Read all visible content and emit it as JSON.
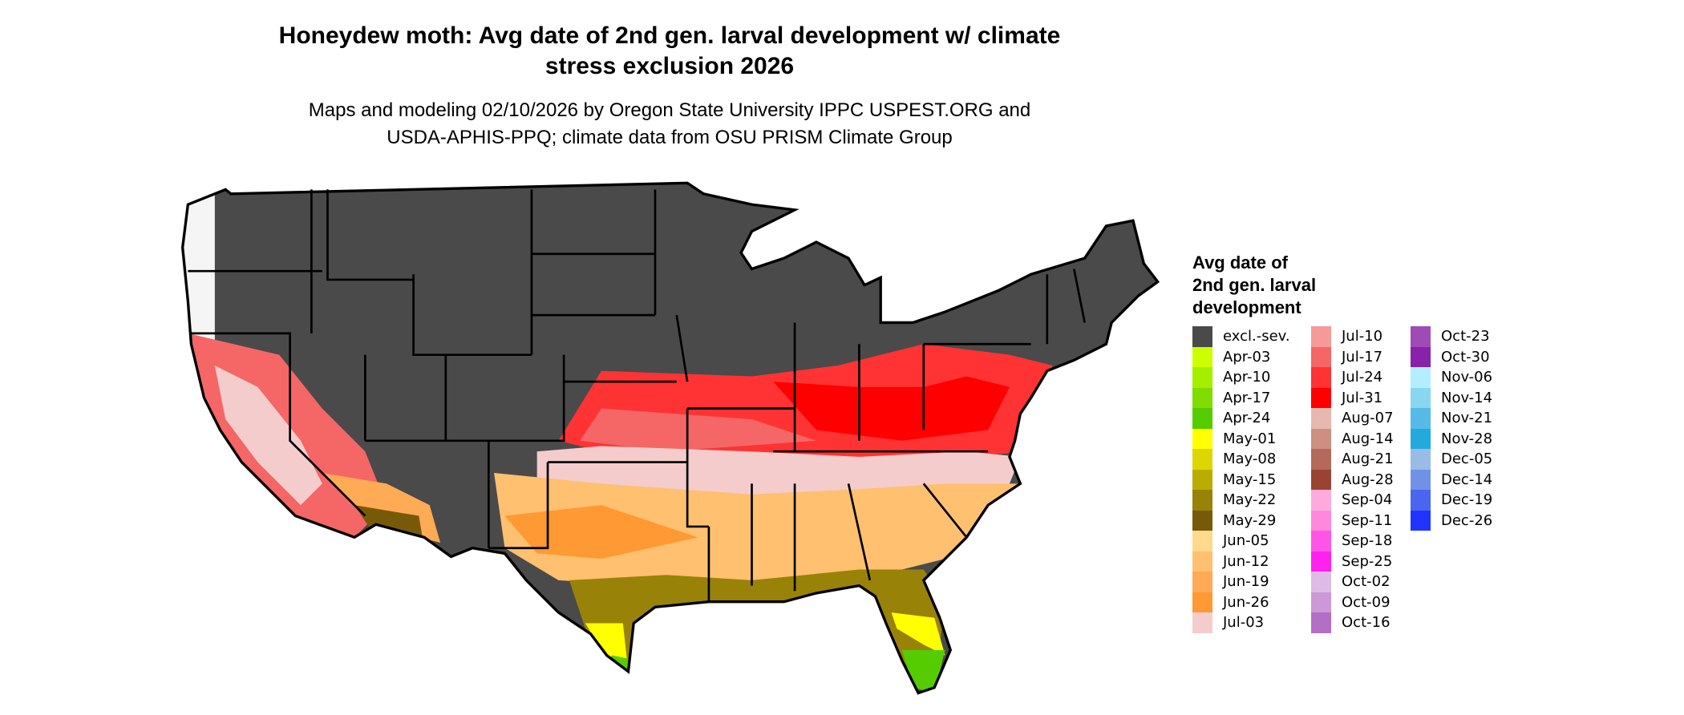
{
  "title": "Honeydew moth: Avg date of 2nd gen. larval development w/ climate stress exclusion 2026",
  "title_lines": [
    "Honeydew moth: Avg date of 2nd gen. larval development w/ climate",
    "stress exclusion 2026"
  ],
  "subtitle_lines": [
    "Maps and modeling 02/10/2026 by Oregon State University IPPC USPEST.ORG and",
    "USDA-APHIS-PPQ; climate data from OSU PRISM Climate Group"
  ],
  "chart_data": {
    "type": "heatmap",
    "subtype": "choropleth map of contiguous US",
    "legend_title": [
      "Avg date of",
      "2nd gen. larval",
      "development"
    ],
    "legend_placement": "right",
    "legend_columns": [
      [
        {
          "label": "excl.-sev.",
          "color": "#4a4a4a"
        },
        {
          "label": "Apr-03",
          "color": "#ccff00"
        },
        {
          "label": "Apr-10",
          "color": "#a6ee00"
        },
        {
          "label": "Apr-17",
          "color": "#7fdd00"
        },
        {
          "label": "Apr-24",
          "color": "#55cc00"
        },
        {
          "label": "May-01",
          "color": "#ffff00"
        },
        {
          "label": "May-08",
          "color": "#ddd600"
        },
        {
          "label": "May-15",
          "color": "#bbac00"
        },
        {
          "label": "May-22",
          "color": "#998208"
        },
        {
          "label": "May-29",
          "color": "#775a08"
        },
        {
          "label": "Jun-05",
          "color": "#ffd98c"
        },
        {
          "label": "Jun-12",
          "color": "#ffc070"
        },
        {
          "label": "Jun-19",
          "color": "#ffaa55"
        },
        {
          "label": "Jun-26",
          "color": "#ff9933"
        },
        {
          "label": "Jul-03",
          "color": "#f5cccc"
        }
      ],
      [
        {
          "label": "Jul-10",
          "color": "#f59999"
        },
        {
          "label": "Jul-17",
          "color": "#f56666"
        },
        {
          "label": "Jul-24",
          "color": "#ff3333"
        },
        {
          "label": "Jul-31",
          "color": "#ff0000"
        },
        {
          "label": "Aug-07",
          "color": "#e6b8b0"
        },
        {
          "label": "Aug-14",
          "color": "#cc8f80"
        },
        {
          "label": "Aug-21",
          "color": "#b36a5a"
        },
        {
          "label": "Aug-28",
          "color": "#994433"
        },
        {
          "label": "Sep-04",
          "color": "#ffaadd"
        },
        {
          "label": "Sep-11",
          "color": "#ff88dd"
        },
        {
          "label": "Sep-18",
          "color": "#ff55e6"
        },
        {
          "label": "Sep-25",
          "color": "#ff22ee"
        },
        {
          "label": "Oct-02",
          "color": "#ddbbe6"
        },
        {
          "label": "Oct-09",
          "color": "#cc99d6"
        },
        {
          "label": "Oct-16",
          "color": "#b36ec6"
        }
      ],
      [
        {
          "label": "Oct-23",
          "color": "#a04ab6"
        },
        {
          "label": "Oct-30",
          "color": "#8822aa"
        },
        {
          "label": "Nov-06",
          "color": "#b3eeff"
        },
        {
          "label": "Nov-14",
          "color": "#88d6f0"
        },
        {
          "label": "Nov-21",
          "color": "#55bbe6"
        },
        {
          "label": "Nov-28",
          "color": "#22aadd"
        },
        {
          "label": "Dec-05",
          "color": "#99bbe6"
        },
        {
          "label": "Dec-14",
          "color": "#7092e6"
        },
        {
          "label": "Dec-19",
          "color": "#4a66ee"
        },
        {
          "label": "Dec-26",
          "color": "#2233ff"
        }
      ]
    ]
  }
}
